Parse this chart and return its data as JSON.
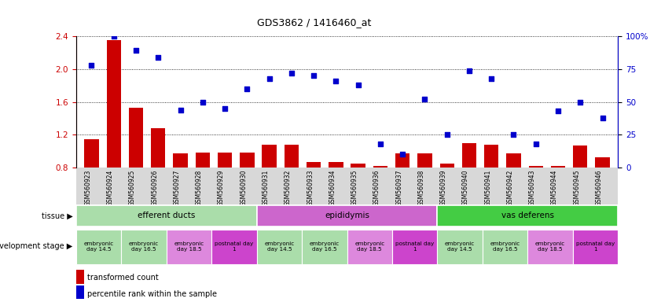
{
  "title": "GDS3862 / 1416460_at",
  "samples": [
    "GSM560923",
    "GSM560924",
    "GSM560925",
    "GSM560926",
    "GSM560927",
    "GSM560928",
    "GSM560929",
    "GSM560930",
    "GSM560931",
    "GSM560932",
    "GSM560933",
    "GSM560934",
    "GSM560935",
    "GSM560936",
    "GSM560937",
    "GSM560938",
    "GSM560939",
    "GSM560940",
    "GSM560941",
    "GSM560942",
    "GSM560943",
    "GSM560944",
    "GSM560945",
    "GSM560946"
  ],
  "bar_values": [
    1.15,
    2.35,
    1.53,
    1.28,
    0.97,
    0.98,
    0.98,
    0.98,
    1.08,
    1.08,
    0.87,
    0.87,
    0.85,
    0.82,
    0.97,
    0.97,
    0.85,
    1.1,
    1.08,
    0.97,
    0.82,
    0.82,
    1.07,
    0.93
  ],
  "scatter_values": [
    78,
    100,
    89,
    84,
    44,
    50,
    45,
    60,
    68,
    72,
    70,
    66,
    63,
    18,
    10,
    52,
    25,
    74,
    68,
    25,
    18,
    43,
    50,
    38
  ],
  "ylim_left": [
    0.8,
    2.4
  ],
  "ylim_right": [
    0,
    100
  ],
  "yticks_left": [
    0.8,
    1.2,
    1.6,
    2.0,
    2.4
  ],
  "yticks_right": [
    0,
    25,
    50,
    75,
    100
  ],
  "ytick_labels_right": [
    "0",
    "25",
    "50",
    "75",
    "100%"
  ],
  "bar_color": "#cc0000",
  "scatter_color": "#0000cc",
  "grid_color": "#000000",
  "xticklabel_bg": "#d8d8d8",
  "tissue_groups": [
    {
      "label": "efferent ducts",
      "start": 0,
      "end": 7,
      "color": "#aaddaa"
    },
    {
      "label": "epididymis",
      "start": 8,
      "end": 15,
      "color": "#cc66cc"
    },
    {
      "label": "vas deferens",
      "start": 16,
      "end": 23,
      "color": "#44cc44"
    }
  ],
  "stage_groups": [
    {
      "label": "embryonic\nday 14.5",
      "start": 0,
      "end": 1,
      "color": "#aaddaa"
    },
    {
      "label": "embryonic\nday 16.5",
      "start": 2,
      "end": 3,
      "color": "#aaddaa"
    },
    {
      "label": "embryonic\nday 18.5",
      "start": 4,
      "end": 5,
      "color": "#dd88dd"
    },
    {
      "label": "postnatal day\n1",
      "start": 6,
      "end": 7,
      "color": "#cc44cc"
    },
    {
      "label": "embryonic\nday 14.5",
      "start": 8,
      "end": 9,
      "color": "#aaddaa"
    },
    {
      "label": "embryonic\nday 16.5",
      "start": 10,
      "end": 11,
      "color": "#aaddaa"
    },
    {
      "label": "embryonic\nday 18.5",
      "start": 12,
      "end": 13,
      "color": "#dd88dd"
    },
    {
      "label": "postnatal day\n1",
      "start": 14,
      "end": 15,
      "color": "#cc44cc"
    },
    {
      "label": "embryonic\nday 14.5",
      "start": 16,
      "end": 17,
      "color": "#aaddaa"
    },
    {
      "label": "embryonic\nday 16.5",
      "start": 18,
      "end": 19,
      "color": "#aaddaa"
    },
    {
      "label": "embryonic\nday 18.5",
      "start": 20,
      "end": 21,
      "color": "#dd88dd"
    },
    {
      "label": "postnatal day\n1",
      "start": 22,
      "end": 23,
      "color": "#cc44cc"
    }
  ],
  "legend_bar_label": "transformed count",
  "legend_scatter_label": "percentile rank within the sample",
  "tissue_label": "tissue",
  "stage_label": "development stage",
  "background_color": "#ffffff",
  "fig_width": 8.41,
  "fig_height": 3.84,
  "dpi": 100
}
